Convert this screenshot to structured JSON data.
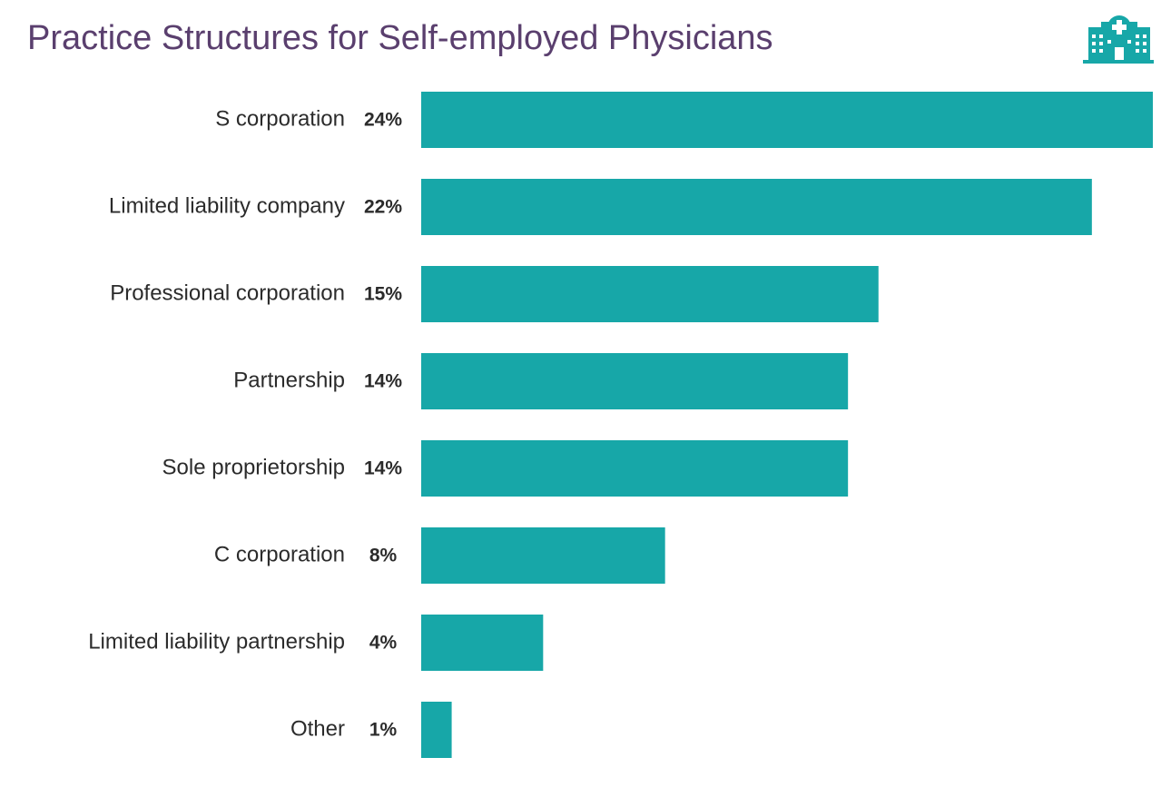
{
  "chart_data": {
    "type": "bar",
    "orientation": "horizontal",
    "title": "Practice Structures for Self-employed Physicians",
    "categories": [
      "S corporation",
      "Limited liability company",
      "Professional corporation",
      "Partnership",
      "Sole proprietorship",
      "C corporation",
      "Limited liability partnership",
      "Other"
    ],
    "values": [
      24,
      22,
      15,
      14,
      14,
      8,
      4,
      1
    ],
    "value_labels": [
      "24%",
      "22%",
      "15%",
      "14%",
      "14%",
      "8%",
      "4%",
      "1%"
    ],
    "color": "#17a7a8"
  }
}
